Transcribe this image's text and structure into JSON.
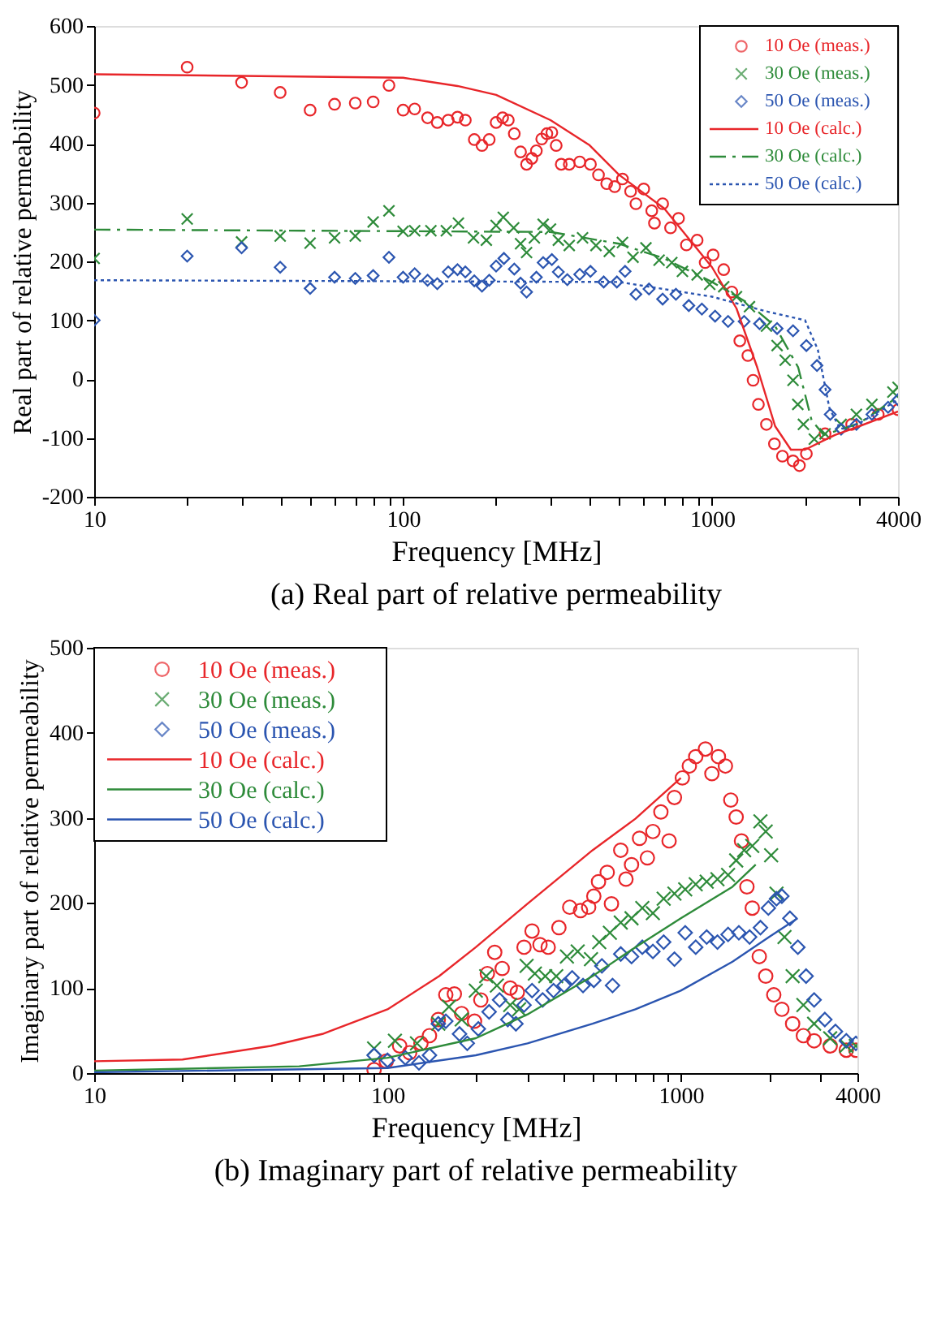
{
  "chart_data": [
    {
      "type": "scatter",
      "title": "(a) Real part of relative permeability",
      "xlabel": "Frequency [MHz]",
      "ylabel": "Real part of relative permeability",
      "log": "x",
      "legend": "top right",
      "xlim": [
        10,
        4000
      ],
      "xticks": [
        10,
        {
          "value": 20,
          "label": null
        },
        {
          "value": 30,
          "label": null
        },
        {
          "value": 40,
          "label": null
        },
        {
          "value": 50,
          "label": null
        },
        {
          "value": 60,
          "label": null
        },
        {
          "value": 70,
          "label": null
        },
        {
          "value": 80,
          "label": null
        },
        {
          "value": 90,
          "label": null
        },
        100,
        {
          "value": 200,
          "label": null
        },
        {
          "value": 300,
          "label": null
        },
        {
          "value": 400,
          "label": null
        },
        {
          "value": 500,
          "label": null
        },
        {
          "value": 600,
          "label": null
        },
        {
          "value": 700,
          "label": null
        },
        {
          "value": 800,
          "label": null
        },
        {
          "value": 900,
          "label": null
        },
        1000,
        {
          "value": 2000,
          "label": null
        },
        {
          "value": 3000,
          "label": null
        },
        4000
      ],
      "ylim": [
        -200,
        600
      ],
      "yticks": [
        -200,
        -100,
        0,
        100,
        200,
        300,
        400,
        500,
        600
      ],
      "series": [
        {
          "name": "10 Oe (meas.)",
          "marker": "circle",
          "color": "#e8262a",
          "x": [
            10,
            20,
            30,
            40,
            50,
            60,
            70,
            80,
            90,
            100,
            109,
            120,
            129,
            140,
            150,
            159,
            170,
            180,
            190,
            200,
            210,
            219,
            229,
            240,
            251,
            261,
            270,
            281,
            292,
            303,
            313,
            325,
            345,
            373,
            404,
            429,
            456,
            484,
            513,
            545,
            567,
            601,
            638,
            651,
            692,
            734,
            779,
            826,
            895,
            950,
            1008,
            1091,
            1159,
            1230,
            1306,
            1358,
            1413,
            1500,
            1592,
            1690,
            1829,
            1918,
            2020,
            2322,
            2831,
            3451,
            4000
          ],
          "values": [
            452,
            530,
            504,
            487,
            457,
            467,
            469,
            471,
            499,
            457,
            459,
            444,
            436,
            440,
            445,
            440,
            407,
            397,
            407,
            436,
            444,
            440,
            417,
            386,
            365,
            375,
            388,
            408,
            417,
            419,
            397,
            365,
            365,
            369,
            365,
            347,
            332,
            327,
            340,
            319,
            298,
            323,
            286,
            265,
            298,
            257,
            273,
            228,
            236,
            198,
            211,
            186,
            148,
            65,
            40,
            -2,
            -43,
            -77,
            -110,
            -131,
            -139,
            -147,
            -127,
            -93,
            -77,
            -60,
            -52
          ]
        },
        {
          "name": "30 Oe (meas.)",
          "marker": "cross",
          "color": "#2e8b3a",
          "x": [
            10,
            20,
            30,
            40,
            50,
            60,
            70,
            80,
            90,
            100,
            109,
            123,
            138,
            151,
            169,
            186,
            200,
            211,
            228,
            240,
            251,
            266,
            284,
            300,
            318,
            345,
            381,
            421,
            465,
            513,
            555,
            611,
            674,
            741,
            802,
            895,
            983,
            1091,
            1200,
            1322,
            1500,
            1624,
            1725,
            1829,
            1895,
            1976,
            2143,
            2322,
            2617,
            2933,
            3293,
            3850,
            4000
          ],
          "values": [
            205,
            272,
            233,
            243,
            231,
            240,
            243,
            267,
            286,
            251,
            252,
            252,
            252,
            265,
            240,
            236,
            261,
            275,
            257,
            230,
            215,
            240,
            263,
            255,
            236,
            227,
            240,
            227,
            217,
            232,
            207,
            223,
            202,
            198,
            183,
            177,
            161,
            157,
            140,
            123,
            90,
            57,
            32,
            -2,
            -43,
            -77,
            -102,
            -93,
            -77,
            -60,
            -43,
            -22,
            -14
          ]
        },
        {
          "name": "50 Oe (meas.)",
          "marker": "diamond",
          "color": "#2b55b0",
          "x": [
            10,
            20,
            30,
            40,
            50,
            60,
            70,
            80,
            90,
            100,
            109,
            120,
            129,
            140,
            150,
            159,
            170,
            180,
            190,
            200,
            212,
            229,
            240,
            251,
            270,
            284,
            303,
            318,
            340,
            373,
            404,
            446,
            492,
            523,
            567,
            625,
            692,
            764,
            841,
            927,
            1023,
            1127,
            1270,
            1425,
            1624,
            1829,
            2020,
            2186,
            2322,
            2413,
            2617,
            2933,
            3293,
            3714,
            4000
          ],
          "values": [
            100,
            209,
            223,
            190,
            154,
            173,
            171,
            176,
            207,
            173,
            179,
            168,
            162,
            182,
            186,
            182,
            167,
            158,
            168,
            192,
            205,
            187,
            163,
            148,
            173,
            198,
            203,
            182,
            169,
            178,
            183,
            165,
            165,
            183,
            144,
            153,
            136,
            144,
            125,
            119,
            107,
            98,
            98,
            94,
            86,
            82,
            57,
            23,
            -18,
            -60,
            -85,
            -77,
            -60,
            -48,
            -35
          ]
        },
        {
          "name": "10 Oe (calc.)",
          "type": "line",
          "line_style": "solid",
          "color": "#e8262a",
          "x": [
            10,
            100,
            150,
            200,
            300,
            400,
            500,
            700,
            1000,
            1200,
            1400,
            1600,
            1800,
            2000,
            2500,
            3000,
            4000
          ],
          "values": [
            518,
            512,
            498,
            483,
            440,
            398,
            347,
            290,
            190,
            120,
            20,
            -80,
            -120,
            -120,
            -95,
            -80,
            -55
          ]
        },
        {
          "name": "30 Oe (calc.)",
          "type": "line",
          "line_style": "dashed",
          "color": "#2e8b3a",
          "x": [
            10,
            300,
            500,
            700,
            1000,
            1300,
            1600,
            1900,
            2100,
            2300,
            3000,
            4000
          ],
          "values": [
            254,
            250,
            230,
            205,
            165,
            130,
            90,
            20,
            -70,
            -95,
            -75,
            -30
          ]
        },
        {
          "name": "50 Oe (calc.)",
          "type": "line",
          "line_style": "dotted",
          "color": "#2b55b0",
          "x": [
            10,
            500,
            1000,
            1500,
            2000,
            2200,
            2400,
            2600,
            3000,
            4000
          ],
          "values": [
            168,
            165,
            140,
            115,
            100,
            50,
            -50,
            -85,
            -75,
            -35
          ]
        }
      ]
    },
    {
      "type": "scatter",
      "title": "(b) Imaginary part of relative permeability",
      "xlabel": "Frequency [MHz]",
      "ylabel": "Imaginary part of relative permeability",
      "log": "x",
      "legend": "top left",
      "xlim": [
        10,
        4000
      ],
      "xticks": [
        10,
        {
          "value": 20,
          "label": null
        },
        {
          "value": 30,
          "label": null
        },
        {
          "value": 40,
          "label": null
        },
        {
          "value": 50,
          "label": null
        },
        {
          "value": 60,
          "label": null
        },
        {
          "value": 70,
          "label": null
        },
        {
          "value": 80,
          "label": null
        },
        {
          "value": 90,
          "label": null
        },
        100,
        {
          "value": 200,
          "label": null
        },
        {
          "value": 300,
          "label": null
        },
        {
          "value": 400,
          "label": null
        },
        {
          "value": 500,
          "label": null
        },
        {
          "value": 600,
          "label": null
        },
        {
          "value": 700,
          "label": null
        },
        {
          "value": 800,
          "label": null
        },
        {
          "value": 900,
          "label": null
        },
        1000,
        {
          "value": 2000,
          "label": null
        },
        {
          "value": 3000,
          "label": null
        },
        4000
      ],
      "ylim": [
        0,
        500
      ],
      "yticks": [
        0,
        100,
        200,
        300,
        400,
        500
      ],
      "series": [
        {
          "name": "10 Oe (meas.)",
          "marker": "circle",
          "color": "#e8262a",
          "x": [
            90,
            99,
            110,
            119,
            130,
            139,
            149,
            158,
            169,
            179,
            198,
            208,
            219,
            232,
            246,
            262,
            277,
            292,
            311,
            331,
            353,
            384,
            418,
            455,
            485,
            505,
            524,
            561,
            580,
            624,
            650,
            679,
            723,
            769,
            803,
            855,
            912,
            951,
            1012,
            1069,
            1124,
            1213,
            1276,
            1343,
            1419,
            1480,
            1544,
            1610,
            1680,
            1752,
            1851,
            1947,
            2074,
            2210,
            2405,
            2617,
            2847,
            3230,
            3665,
            3950
          ],
          "values": [
            4,
            14,
            32,
            24,
            35,
            44,
            63,
            92,
            93,
            70,
            61,
            86,
            117,
            142,
            123,
            100,
            95,
            148,
            167,
            151,
            148,
            171,
            195,
            191,
            195,
            208,
            225,
            236,
            199,
            262,
            228,
            245,
            276,
            253,
            284,
            307,
            273,
            324,
            347,
            361,
            372,
            381,
            352,
            372,
            361,
            321,
            301,
            273,
            219,
            194,
            137,
            114,
            92,
            75,
            58,
            44,
            38,
            32,
            27,
            27
          ]
        },
        {
          "name": "30 Oe (meas.)",
          "marker": "cross",
          "color": "#2e8b3a",
          "x": [
            90,
            106,
            126,
            149,
            162,
            179,
            200,
            217,
            236,
            262,
            281,
            298,
            318,
            345,
            376,
            409,
            445,
            494,
            527,
            573,
            624,
            679,
            739,
            803,
            874,
            951,
            1035,
            1124,
            1225,
            1333,
            1449,
            1544,
            1644,
            1752,
            1868,
            1947,
            2032,
            2119,
            2256,
            2405,
            2617,
            2847,
            3230,
            3665,
            3950
          ],
          "values": [
            29,
            38,
            35,
            58,
            78,
            63,
            97,
            114,
            103,
            80,
            75,
            126,
            117,
            114,
            114,
            137,
            143,
            134,
            154,
            165,
            177,
            182,
            194,
            188,
            205,
            211,
            216,
            222,
            225,
            228,
            233,
            250,
            262,
            267,
            296,
            284,
            256,
            211,
            160,
            114,
            80,
            58,
            41,
            32,
            32
          ]
        },
        {
          "name": "50 Oe (meas.)",
          "marker": "diamond",
          "color": "#2b55b0",
          "x": [
            90,
            100,
            115,
            128,
            139,
            149,
            158,
            176,
            187,
            204,
            222,
            241,
            257,
            274,
            292,
            311,
            338,
            368,
            400,
            426,
            464,
            505,
            538,
            585,
            624,
            679,
            739,
            803,
            874,
            951,
            1035,
            1124,
            1225,
            1333,
            1449,
            1577,
            1716,
            1868,
            1988,
            2119,
            2210,
            2354,
            2506,
            2673,
            2847,
            3097,
            3366,
            3665,
            3950
          ],
          "values": [
            21,
            15,
            18,
            12,
            21,
            58,
            61,
            46,
            35,
            52,
            72,
            86,
            63,
            58,
            80,
            97,
            86,
            97,
            103,
            112,
            103,
            109,
            126,
            103,
            140,
            137,
            148,
            143,
            154,
            134,
            165,
            148,
            160,
            154,
            163,
            165,
            160,
            171,
            194,
            205,
            208,
            182,
            148,
            114,
            86,
            63,
            49,
            38,
            35
          ]
        },
        {
          "name": "10 Oe (calc.)",
          "type": "line",
          "line_style": "solid",
          "color": "#e8262a",
          "x": [
            10,
            20,
            40,
            60,
            100,
            150,
            200,
            300,
            500,
            700,
            1000
          ],
          "values": [
            14,
            16,
            32,
            46,
            75,
            114,
            148,
            199,
            262,
            299,
            347
          ]
        },
        {
          "name": "30 Oe (calc.)",
          "type": "line",
          "line_style": "solid",
          "color": "#2e8b3a",
          "x": [
            10,
            50,
            100,
            200,
            300,
            500,
            700,
            1000,
            1500,
            1800
          ],
          "values": [
            3,
            8,
            18,
            41,
            69,
            114,
            148,
            182,
            219,
            245
          ]
        },
        {
          "name": "50 Oe (calc.)",
          "type": "line",
          "line_style": "solid",
          "color": "#2b55b0",
          "x": [
            10,
            100,
            200,
            300,
            500,
            700,
            1000,
            1500,
            2000,
            2500
          ],
          "values": [
            1,
            6,
            21,
            35,
            58,
            75,
            97,
            131,
            160,
            182
          ]
        }
      ]
    }
  ]
}
